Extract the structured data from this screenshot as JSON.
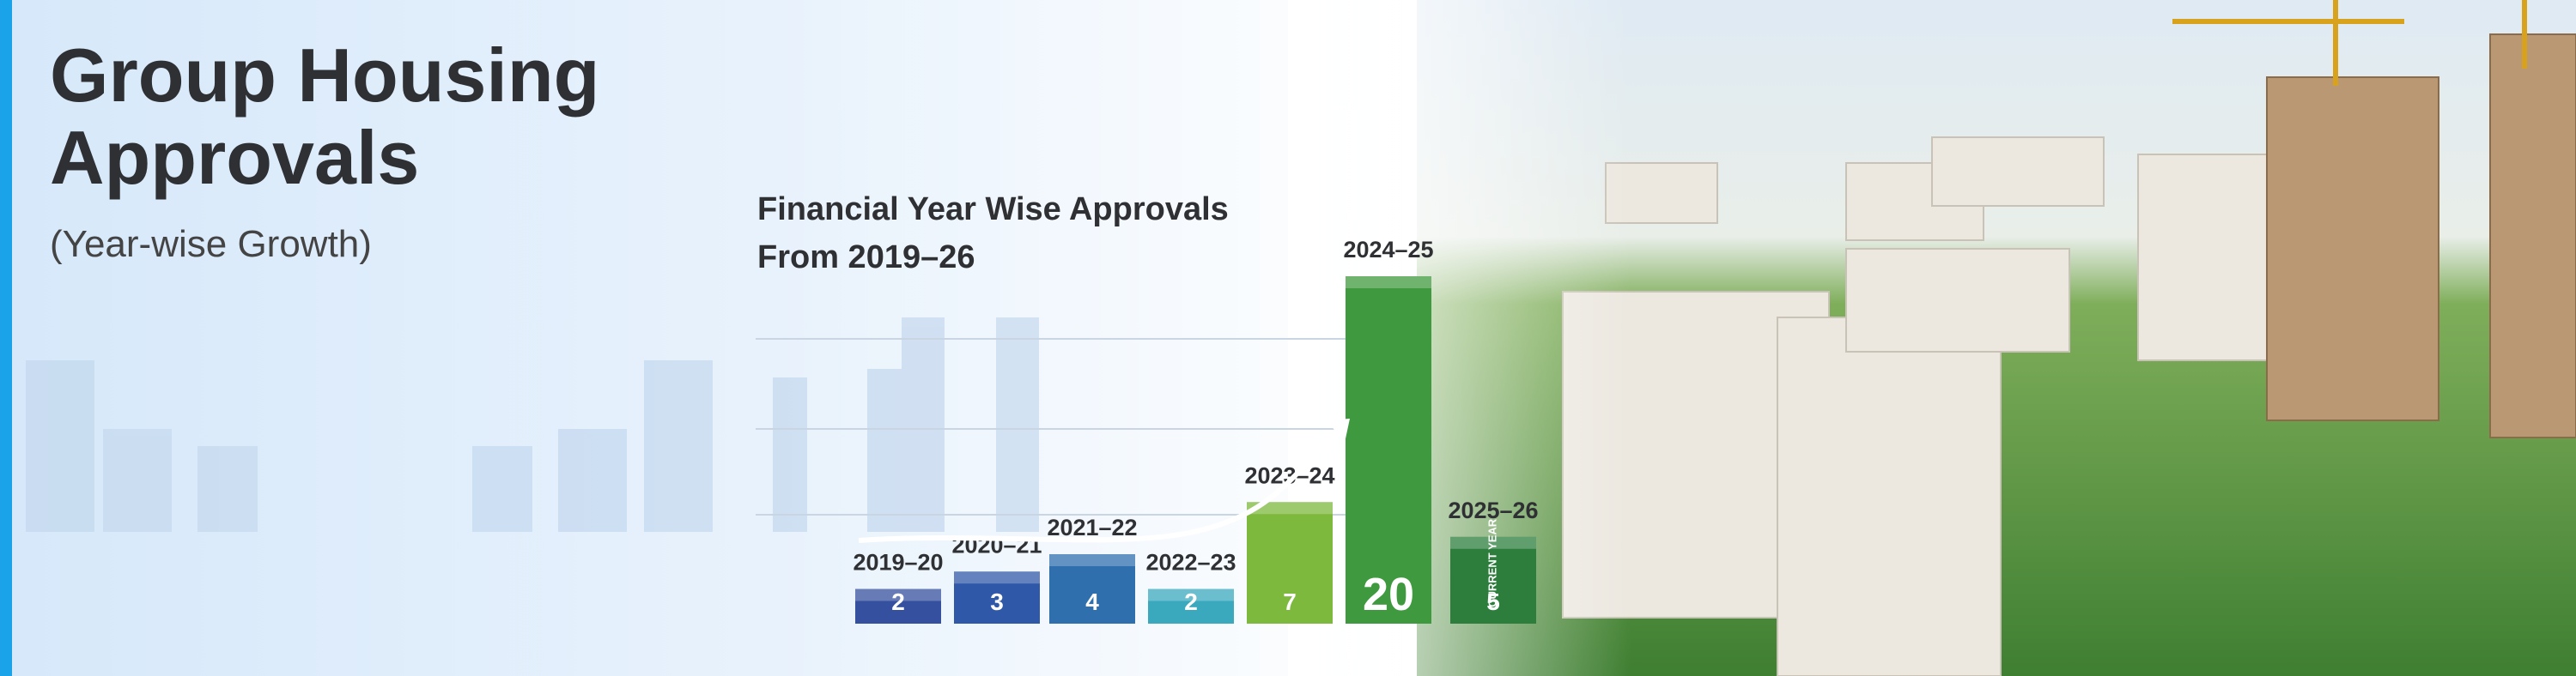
{
  "header": {
    "title": "Group Housing Approvals",
    "subtitle": "(Year-wise Growth)"
  },
  "chart_data": {
    "type": "bar",
    "title": "Financial Year Wise Approvals",
    "subtitle": "From 2019–26",
    "categories": [
      "2019–20",
      "2020–21",
      "2021–22",
      "2022–23",
      "2023–24",
      "2024–25",
      "2025–26"
    ],
    "values": [
      2,
      3,
      4,
      2,
      7,
      20,
      5
    ],
    "colors": [
      "#34509e",
      "#2f58a8",
      "#2f6fae",
      "#3aa9be",
      "#7cb93c",
      "#3f9a3f",
      "#2d7e3d"
    ],
    "annotation": "CURRENT YEAR"
  }
}
